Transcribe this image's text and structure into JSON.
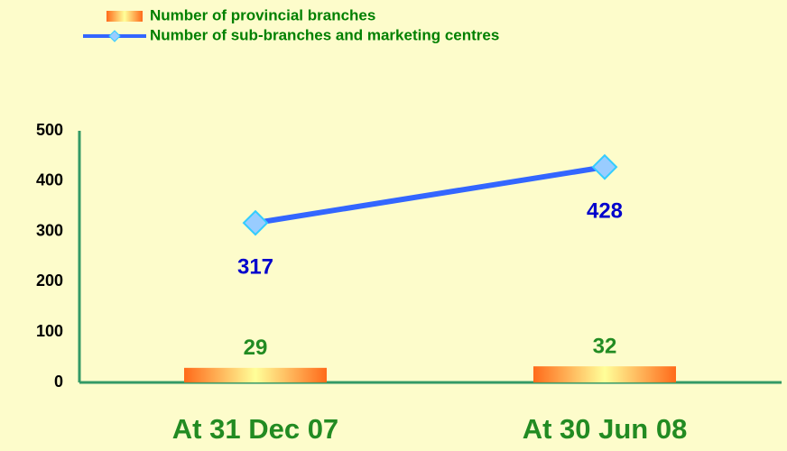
{
  "chart_data": {
    "type": "combo",
    "categories": [
      "At 31 Dec 07",
      "At 30 Jun 08"
    ],
    "series": [
      {
        "name": "Number of provincial branches",
        "type": "bar",
        "color": "#ff6a1a",
        "values": [
          29,
          32
        ]
      },
      {
        "name": "Number of sub-branches and marketing centres",
        "type": "line",
        "color": "#3366ff",
        "values": [
          317,
          428
        ]
      }
    ],
    "ylim": [
      0,
      500
    ],
    "yticks": [
      0,
      100,
      200,
      300,
      400,
      500
    ]
  }
}
